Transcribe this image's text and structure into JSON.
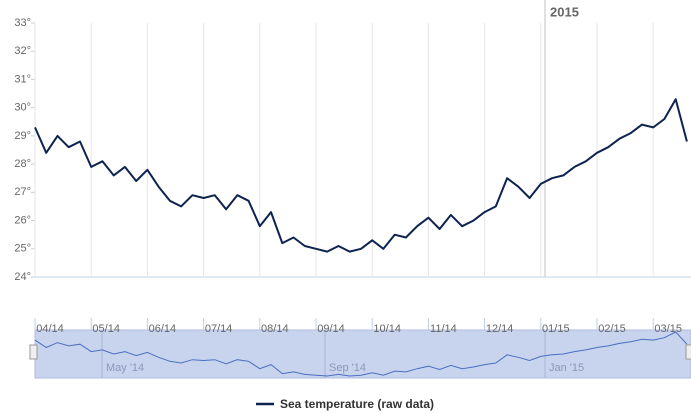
{
  "chart_data": {
    "type": "line",
    "series": [
      {
        "name": "Sea temperature (raw data)",
        "color": "#0d2350",
        "values": [
          29.3,
          28.4,
          29.0,
          28.6,
          28.8,
          27.9,
          28.1,
          27.6,
          27.9,
          27.4,
          27.8,
          27.2,
          26.7,
          26.5,
          26.9,
          26.8,
          26.9,
          26.4,
          26.9,
          26.7,
          25.8,
          26.3,
          25.2,
          25.4,
          25.1,
          25.0,
          24.9,
          25.1,
          24.9,
          25.0,
          25.3,
          25.0,
          25.5,
          25.4,
          25.8,
          26.1,
          25.7,
          26.2,
          25.8,
          26.0,
          26.3,
          26.5,
          27.5,
          27.2,
          26.8,
          27.3,
          27.5,
          27.6,
          27.9,
          28.1,
          28.4,
          28.6,
          28.9,
          29.1,
          29.4,
          29.3,
          29.6,
          30.3,
          28.8
        ]
      }
    ],
    "categories": [
      "04/14",
      null,
      null,
      null,
      null,
      "05/14",
      null,
      null,
      null,
      null,
      "06/14",
      null,
      null,
      null,
      null,
      "07/14",
      null,
      null,
      null,
      null,
      "08/14",
      null,
      null,
      null,
      null,
      "09/14",
      null,
      null,
      null,
      null,
      "10/14",
      null,
      null,
      null,
      null,
      "11/14",
      null,
      null,
      null,
      null,
      "12/14",
      null,
      null,
      null,
      null,
      "01/15",
      null,
      null,
      null,
      null,
      "02/15",
      null,
      null,
      null,
      null,
      "03/15",
      null,
      null,
      null
    ],
    "ylim": [
      24,
      33
    ],
    "yticks": [
      {
        "value": 24,
        "label": "24°"
      },
      {
        "value": 25,
        "label": "25°"
      },
      {
        "value": 26,
        "label": "26°"
      },
      {
        "value": 27,
        "label": "27°"
      },
      {
        "value": 28,
        "label": "28°"
      },
      {
        "value": 29,
        "label": "29°"
      },
      {
        "value": 30,
        "label": "30°"
      },
      {
        "value": 31,
        "label": "31°"
      },
      {
        "value": 32,
        "label": "32°"
      },
      {
        "value": 33,
        "label": "33°"
      }
    ],
    "year_label": "2015",
    "navigator_labels": [
      "May '14",
      "Sep '14",
      "Jan '15"
    ],
    "grid": true,
    "legend": "bottom"
  }
}
